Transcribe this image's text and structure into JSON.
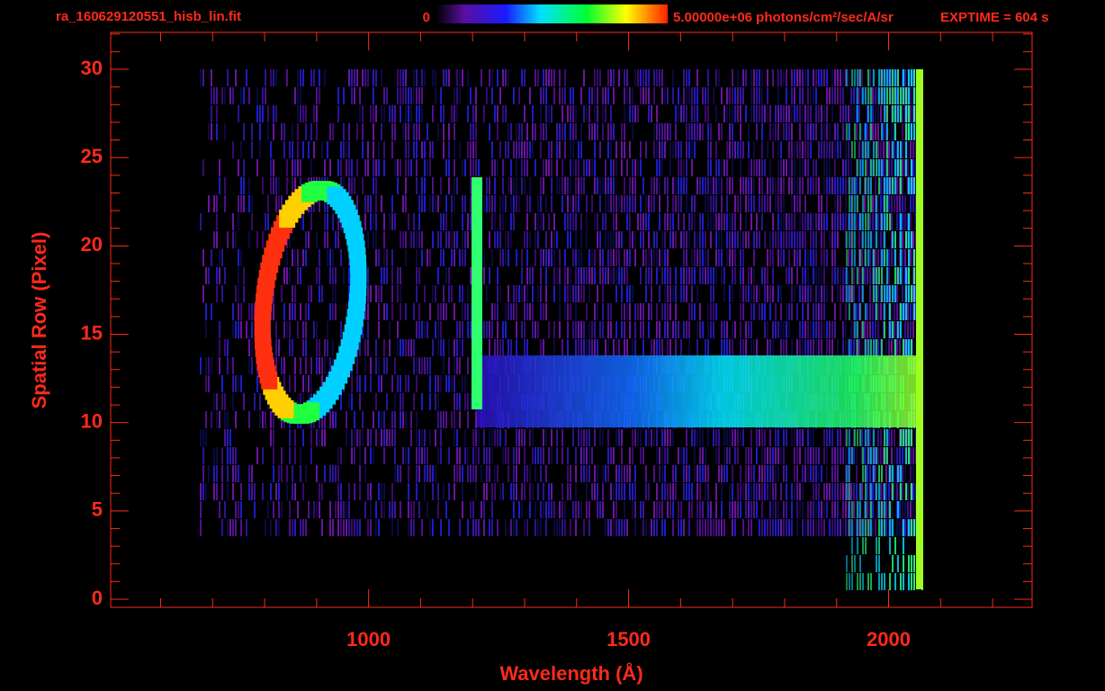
{
  "chart_data": {
    "type": "image",
    "title": "ra_160629120551_hisb_lin.fit",
    "colorbar_min_label": "0",
    "colorbar_max_label": "5.00000e+06 photons/cm²/sec/A/sr",
    "exptime_label": "EXPTIME = 604 s",
    "x_label": "Wavelength (Å)",
    "y_label": "Spatial Row (Pixel)",
    "xlim": [
      504,
      2276
    ],
    "ylim": [
      -0.46,
      32.09
    ],
    "xticks": [
      1000,
      1500,
      2000
    ],
    "yticks": [
      0,
      5,
      10,
      15,
      20,
      25,
      30
    ],
    "xminorticks": [
      600,
      700,
      800,
      900,
      1100,
      1200,
      1300,
      1400,
      1600,
      1700,
      1800,
      1900,
      2100,
      2200
    ],
    "yminorticks": [
      1,
      2,
      3,
      4,
      6,
      7,
      8,
      9,
      11,
      12,
      13,
      14,
      16,
      17,
      18,
      19,
      21,
      22,
      23,
      24,
      26,
      27,
      28,
      29,
      31,
      32
    ],
    "color": "#ff2a1a"
  }
}
